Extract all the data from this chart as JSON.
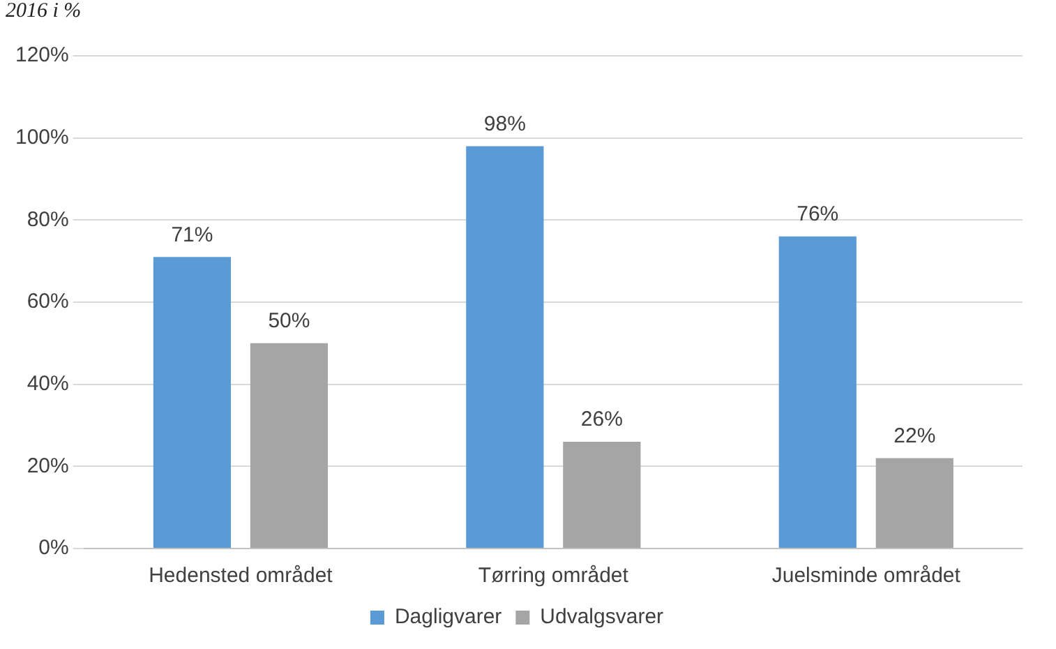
{
  "chart_data": {
    "type": "bar",
    "title": "2016 i %",
    "categories": [
      "Hedensted området",
      "Tørring området",
      "Juelsminde området"
    ],
    "series": [
      {
        "name": "Dagligvarer",
        "color": "#5b9bd5",
        "values": [
          71,
          98,
          76
        ],
        "value_labels": [
          "71%",
          "98%",
          "76%"
        ]
      },
      {
        "name": "Udvalgsvarer",
        "color": "#a5a5a5",
        "values": [
          50,
          26,
          22
        ],
        "value_labels": [
          "50%",
          "26%",
          "22%"
        ]
      }
    ],
    "ylim": [
      0,
      120
    ],
    "yticks": [
      {
        "value": 0,
        "label": "0%"
      },
      {
        "value": 20,
        "label": "20%"
      },
      {
        "value": 40,
        "label": "40%"
      },
      {
        "value": 60,
        "label": "60%"
      },
      {
        "value": 80,
        "label": "80%"
      },
      {
        "value": 100,
        "label": "100%"
      },
      {
        "value": 120,
        "label": "120%"
      }
    ],
    "grid": "y",
    "legend": "bottom"
  }
}
